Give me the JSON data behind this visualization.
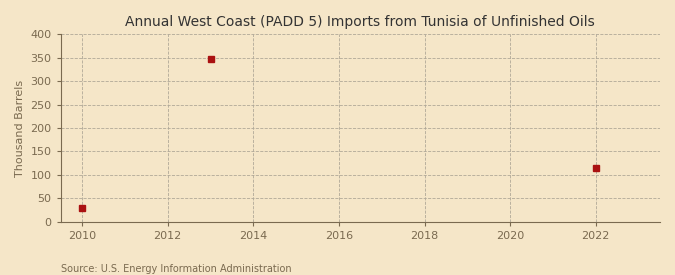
{
  "title": "Annual West Coast (PADD 5) Imports from Tunisia of Unfinished Oils",
  "ylabel": "Thousand Barrels",
  "source": "Source: U.S. Energy Information Administration",
  "background_color": "#f5e6c8",
  "plot_bg_color": "#f5e6c8",
  "data_x": [
    2010,
    2013,
    2022
  ],
  "data_y": [
    30,
    348,
    115
  ],
  "marker_color": "#aa1111",
  "marker": "s",
  "marker_size": 4,
  "xlim": [
    2009.5,
    2023.5
  ],
  "ylim": [
    0,
    400
  ],
  "xticks": [
    2010,
    2012,
    2014,
    2016,
    2018,
    2020,
    2022
  ],
  "yticks": [
    0,
    50,
    100,
    150,
    200,
    250,
    300,
    350,
    400
  ],
  "grid_color": "#b0a898",
  "grid_linestyle": "--",
  "grid_linewidth": 0.6,
  "title_fontsize": 10,
  "title_fontweight": "normal",
  "ylabel_fontsize": 8,
  "tick_fontsize": 8,
  "source_fontsize": 7,
  "tick_color": "#7a6a50",
  "label_color": "#7a6a50"
}
